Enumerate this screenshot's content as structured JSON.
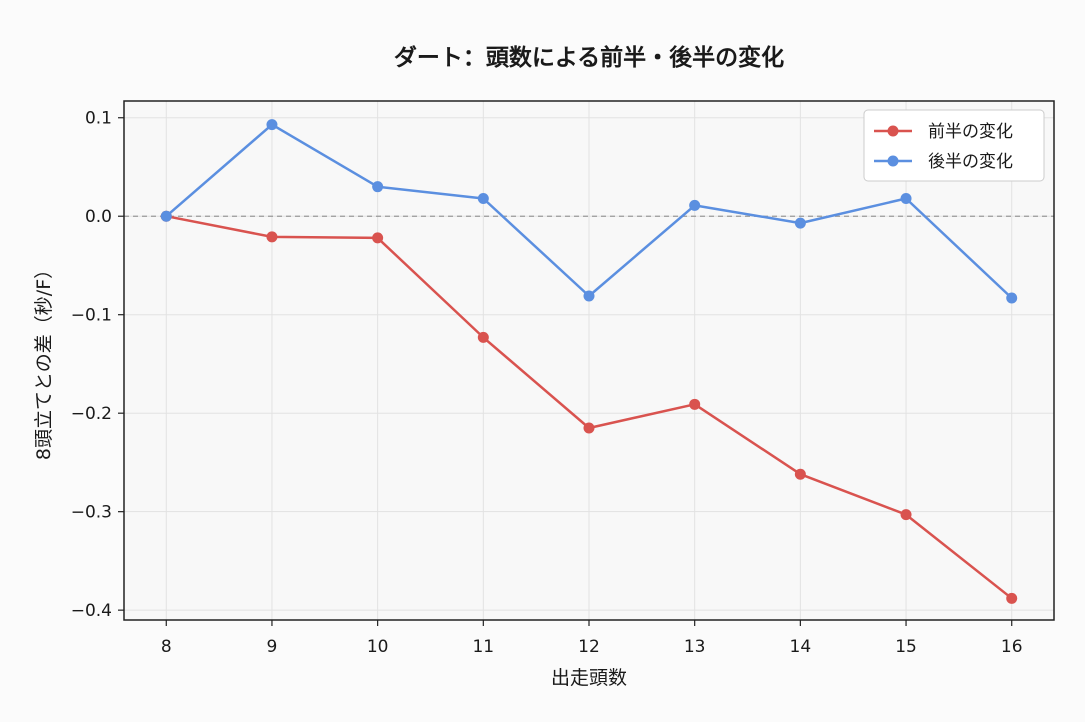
{
  "chart_data": {
    "type": "line",
    "title": "ダート：頭数による前半・後半の変化",
    "xlabel": "出走頭数",
    "ylabel": "8頭立てとの差（秒/F）",
    "x": [
      8,
      9,
      10,
      11,
      12,
      13,
      14,
      15,
      16
    ],
    "xticks": [
      "8",
      "9",
      "10",
      "11",
      "12",
      "13",
      "14",
      "15",
      "16"
    ],
    "yticks": [
      0.1,
      0.0,
      -0.1,
      -0.2,
      -0.3,
      -0.4
    ],
    "ytick_labels": [
      "0.1",
      "0.0",
      "−0.1",
      "−0.2",
      "−0.3",
      "−0.4"
    ],
    "xlim": [
      7.6,
      16.4
    ],
    "ylim": [
      -0.41,
      0.117
    ],
    "grid": true,
    "reference_line": 0.0,
    "legend_position": "top-right",
    "series": [
      {
        "name": "前半の変化",
        "color": "#d9534f",
        "values": [
          0.0,
          -0.021,
          -0.022,
          -0.123,
          -0.215,
          -0.191,
          -0.262,
          -0.303,
          -0.388
        ]
      },
      {
        "name": "後半の変化",
        "color": "#5b8fe0",
        "values": [
          0.0,
          0.093,
          0.03,
          0.018,
          -0.081,
          0.011,
          -0.007,
          0.018,
          -0.083
        ]
      }
    ]
  }
}
